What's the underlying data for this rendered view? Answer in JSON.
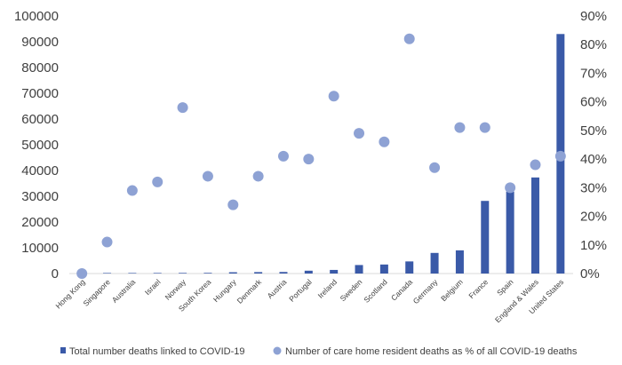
{
  "chart_data": {
    "type": "bar",
    "categories": [
      "Hong Kong",
      "Singapore",
      "Australia",
      "Israel",
      "Norway",
      "South Korea",
      "Hungary",
      "Denmark",
      "Austria",
      "Portugal",
      "Ireland",
      "Sweden",
      "Scotland",
      "Canada",
      "Germany",
      "Belgium",
      "France",
      "Spain",
      "England & Wales",
      "United States"
    ],
    "series": [
      {
        "name": "Total number deaths linked to COVID-19",
        "type": "bar",
        "axis": "left",
        "color": "#3a5aa8",
        "values": [
          4,
          14,
          98,
          214,
          235,
          255,
          500,
          555,
          600,
          1100,
          1400,
          3300,
          3500,
          4700,
          8000,
          9000,
          28200,
          31800,
          37300,
          93000
        ]
      },
      {
        "name": "Number of care home resident deaths as % of all COVID-19 deaths",
        "type": "scatter",
        "axis": "right",
        "color": "#8ea2d4",
        "values": [
          0,
          11,
          29,
          32,
          58,
          34,
          24,
          34,
          41,
          40,
          62,
          49,
          46,
          82,
          37,
          51,
          51,
          30,
          38,
          41
        ]
      }
    ],
    "y_left": {
      "min": 0,
      "max": 100000,
      "ticks": [
        0,
        10000,
        20000,
        30000,
        40000,
        50000,
        60000,
        70000,
        80000,
        90000,
        100000
      ]
    },
    "y_right": {
      "min": 0,
      "max": 90,
      "ticks": [
        "0%",
        "10%",
        "20%",
        "30%",
        "40%",
        "50%",
        "60%",
        "70%",
        "80%",
        "90%"
      ]
    },
    "grid": false,
    "legend_position": "bottom"
  }
}
